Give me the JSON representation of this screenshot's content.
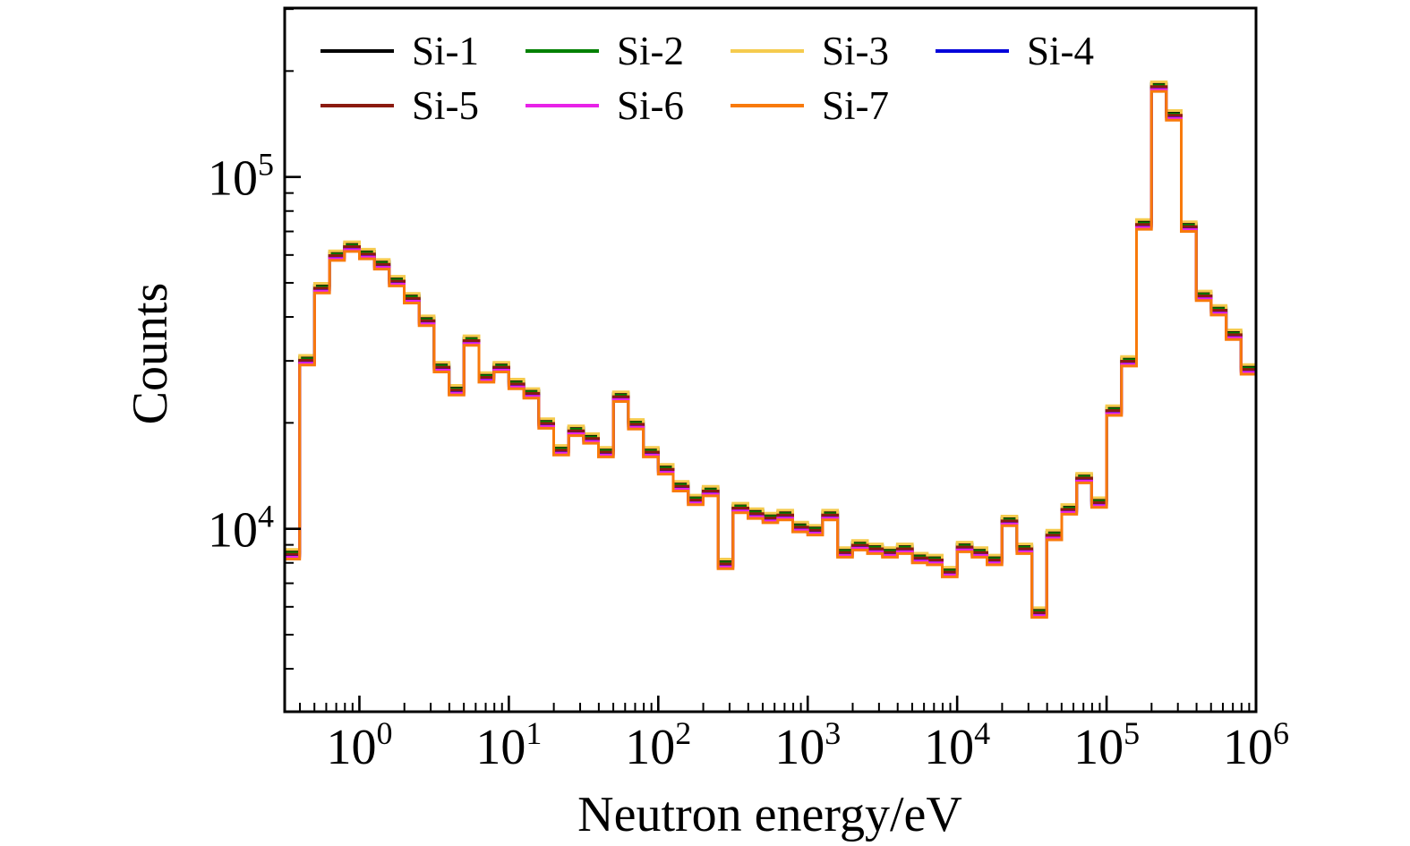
{
  "figure": {
    "background": "#ffffff"
  },
  "chart_data": {
    "type": "step-histogram",
    "description": "Seven overlaid step histograms (silicon detector responses) on log-log axes",
    "title": "",
    "xlabel": "Neutron energy/eV",
    "ylabel": "Counts",
    "xscale": "log",
    "yscale": "log",
    "xlim_log10": [
      -0.5,
      6.0
    ],
    "ylim_log10": [
      3.48,
      5.48
    ],
    "x_tick_exponents": [
      0,
      1,
      2,
      3,
      4,
      5,
      6
    ],
    "y_tick_exponents": [
      4,
      5
    ],
    "grid": false,
    "legend_position": "upper-left-inside, 4 columns, 2 rows",
    "bins": {
      "log10_start": -0.5,
      "log10_width": 0.1,
      "count": 65
    },
    "base_values": [
      8200,
      29200,
      46800,
      57900,
      61400,
      58500,
      54700,
      49000,
      43800,
      37800,
      27900,
      24000,
      33200,
      26100,
      27900,
      25000,
      23500,
      19300,
      16200,
      18400,
      17500,
      16000,
      23000,
      19200,
      16000,
      14300,
      12800,
      11700,
      12400,
      7700,
      11100,
      10700,
      10400,
      10600,
      9800,
      9600,
      10600,
      8300,
      8700,
      8500,
      8300,
      8500,
      8000,
      7900,
      7300,
      8600,
      8300,
      7900,
      10200,
      8500,
      5600,
      9300,
      11000,
      13500,
      11500,
      21000,
      29000,
      71000,
      175000,
      145000,
      70000,
      44500,
      40500,
      34500,
      27500
    ],
    "series": [
      {
        "name": "Si-1",
        "color": "#000000",
        "scale": 1.052
      },
      {
        "name": "Si-2",
        "color": "#008000",
        "scale": 1.042
      },
      {
        "name": "Si-3",
        "color": "#F5CB4E",
        "scale": 1.065
      },
      {
        "name": "Si-4",
        "color": "#0404DB",
        "scale": 1.022
      },
      {
        "name": "Si-5",
        "color": "#8B1A10",
        "scale": 1.032
      },
      {
        "name": "Si-6",
        "color": "#E822E8",
        "scale": 1.012
      },
      {
        "name": "Si-7",
        "color": "#F87A0B",
        "scale": 1.0
      }
    ]
  }
}
